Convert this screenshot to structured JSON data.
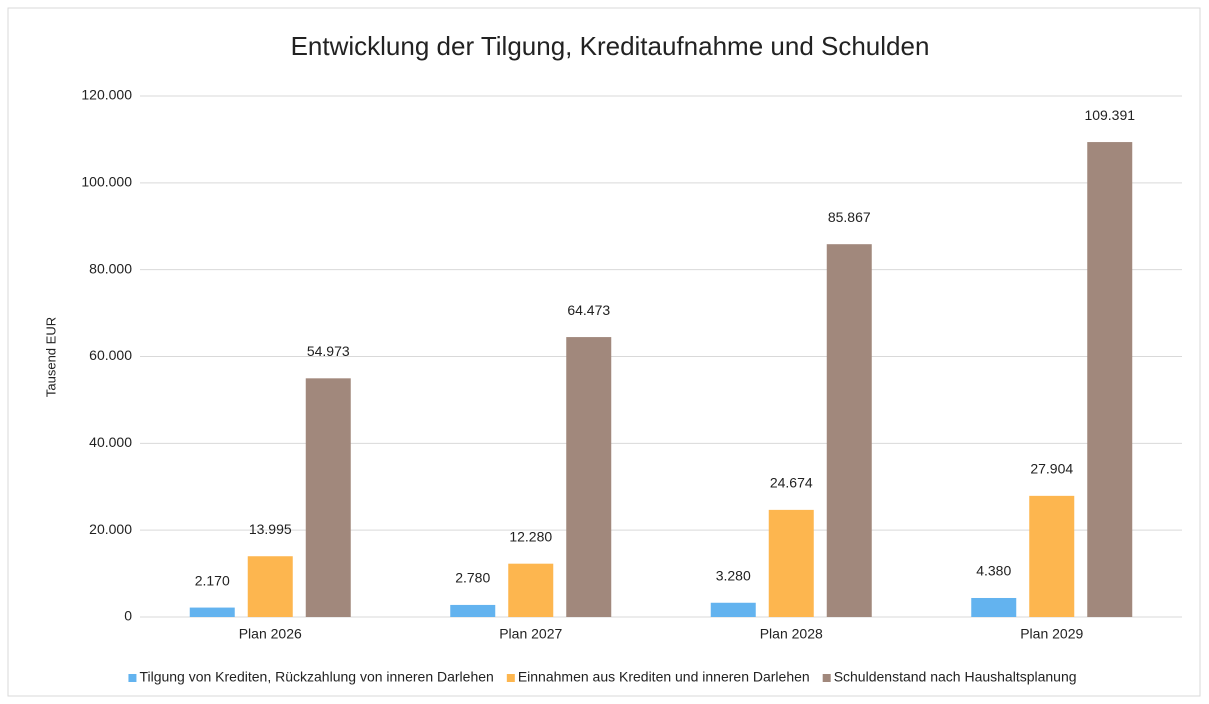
{
  "chart_data": {
    "type": "bar",
    "title": "Entwicklung der Tilgung, Kreditaufnahme und Schulden",
    "y_label": "Tausend EUR",
    "categories": [
      "Plan 2026",
      "Plan 2027",
      "Plan 2028",
      "Plan 2029"
    ],
    "series": [
      {
        "name": "Tilgung von Krediten, Rückzahlung von inneren Darlehen",
        "color": "#63b3ef",
        "values": [
          2170,
          2780,
          3280,
          4380
        ],
        "value_labels": [
          "2.170",
          "2.780",
          "3.280",
          "4.380"
        ]
      },
      {
        "name": "Einnahmen aus Krediten und inneren Darlehen",
        "color": "#fdb64f",
        "values": [
          13995,
          12280,
          24674,
          27904
        ],
        "value_labels": [
          "13.995",
          "12.280",
          "24.674",
          "27.904"
        ]
      },
      {
        "name": "Schuldenstand nach Haushaltsplanung",
        "color": "#a1887c",
        "values": [
          54973,
          64473,
          85867,
          109391
        ],
        "value_labels": [
          "54.973",
          "64.473",
          "85.867",
          "109.391"
        ]
      }
    ],
    "ylim": [
      0,
      120000
    ],
    "yticks": [
      0,
      {
        "value": 20000,
        "label": "20.000"
      },
      {
        "value": 40000,
        "label": "40.000"
      },
      {
        "value": 60000,
        "label": "60.000"
      },
      {
        "value": 80000,
        "label": "80.000"
      },
      {
        "value": 100000,
        "label": "100.000"
      },
      {
        "value": 120000,
        "label": "120.000"
      }
    ],
    "grid": true,
    "legend": "bottom"
  }
}
